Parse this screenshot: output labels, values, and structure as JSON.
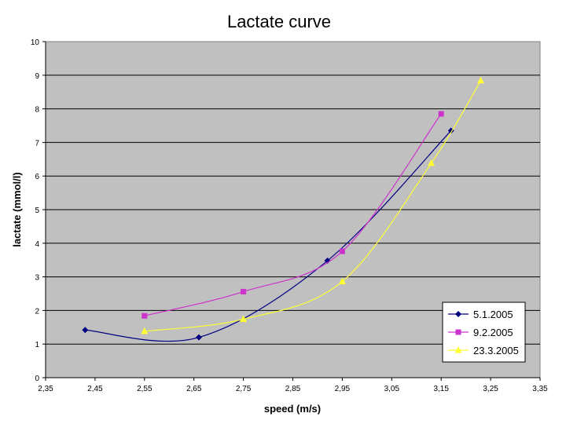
{
  "chart_data": {
    "type": "scatter",
    "title": "Lactate curve",
    "xlabel": "speed (m/s)",
    "ylabel": "lactate (mmol/l)",
    "xlim": [
      2.35,
      3.35
    ],
    "ylim": [
      0,
      10
    ],
    "xticks": [
      2.35,
      2.45,
      2.55,
      2.65,
      2.75,
      2.85,
      2.95,
      3.05,
      3.15,
      3.25,
      3.35
    ],
    "xtick_labels": [
      "2,35",
      "2,45",
      "2,55",
      "2,65",
      "2,75",
      "2,85",
      "2,95",
      "3,05",
      "3,15",
      "3,25",
      "3,35"
    ],
    "yticks": [
      0,
      1,
      2,
      3,
      4,
      5,
      6,
      7,
      8,
      9,
      10
    ],
    "ytick_labels": [
      "0",
      "1",
      "2",
      "3",
      "4",
      "5",
      "6",
      "7",
      "8",
      "9",
      "10"
    ],
    "grid": true,
    "legend_position": "bottom-right",
    "series": [
      {
        "name": "5.1.2005",
        "color": "#000080",
        "marker": "diamond",
        "x": [
          2.43,
          2.66,
          2.92,
          3.17
        ],
        "y": [
          1.42,
          1.2,
          3.48,
          7.35
        ]
      },
      {
        "name": "9.2.2005",
        "color": "#cc33cc",
        "marker": "square",
        "x": [
          2.55,
          2.75,
          2.95,
          3.15
        ],
        "y": [
          1.84,
          2.56,
          3.76,
          7.85
        ]
      },
      {
        "name": "23.3.2005",
        "color": "#ffff33",
        "marker": "triangle",
        "x": [
          2.55,
          2.75,
          2.95,
          3.13,
          3.23
        ],
        "y": [
          1.38,
          1.74,
          2.86,
          6.38,
          8.84
        ]
      }
    ]
  }
}
